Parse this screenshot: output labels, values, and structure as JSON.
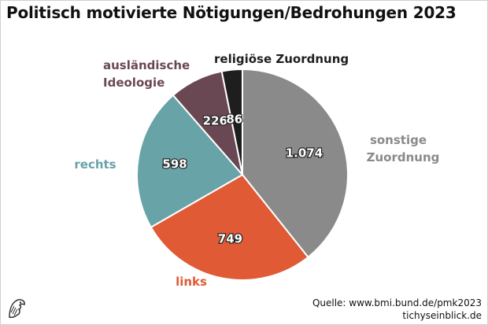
{
  "title": "Politisch motivierte Nötigungen/Bedrohungen 2023",
  "chart_data": {
    "type": "pie",
    "title": "Politisch motivierte Nötigungen/Bedrohungen 2023",
    "start_angle_deg": 0,
    "direction": "clockwise",
    "slices": [
      {
        "label_lines": [
          "sonstige",
          "Zuordnung"
        ],
        "value": 1074,
        "display": "1.074",
        "color": "#8a8a8a"
      },
      {
        "label_lines": [
          "links"
        ],
        "value": 749,
        "display": "749",
        "color": "#e05a36"
      },
      {
        "label_lines": [
          "rechts"
        ],
        "value": 598,
        "display": "598",
        "color": "#68a3a8"
      },
      {
        "label_lines": [
          "ausländische",
          "Ideologie"
        ],
        "value": 226,
        "display": "226",
        "color": "#6a4853"
      },
      {
        "label_lines": [
          "religiöse Zuordnung"
        ],
        "value": 86,
        "display": "86",
        "color": "#1e1e1e"
      }
    ]
  },
  "source": {
    "line1": "Quelle: www.bmi.bund.de/pmk2023",
    "line2": "tichyseinblick.de"
  },
  "logo_icon": "eagle-head-logo-icon"
}
